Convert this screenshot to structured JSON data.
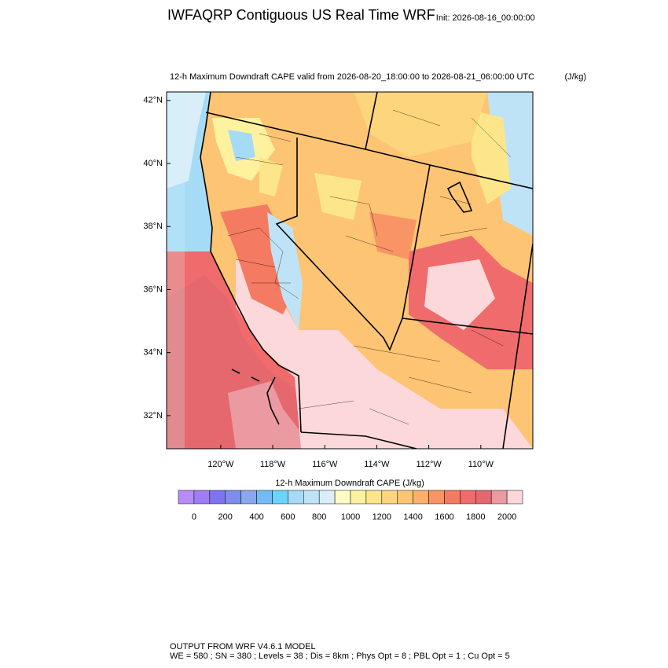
{
  "title": "IWFAQRP Contiguous US Real Time WRF",
  "init": "Init: 2026-08-16_00:00:00",
  "subtitle": "12-h Maximum Downdraft CAPE valid from 2026-08-20_18:00:00 to 2026-08-21_06:00:00 UTC",
  "units": "(J/kg)",
  "map": {
    "xlim": [
      -122.08,
      -108.0
    ],
    "ylim": [
      30.95,
      42.27
    ],
    "xticks": [
      {
        "value": -120,
        "label": "120°W"
      },
      {
        "value": -118,
        "label": "118°W"
      },
      {
        "value": -116,
        "label": "116°W"
      },
      {
        "value": -114,
        "label": "114°W"
      },
      {
        "value": -112,
        "label": "112°W"
      },
      {
        "value": -110,
        "label": "110°W"
      }
    ],
    "yticks": [
      {
        "value": 32,
        "label": "32°N"
      },
      {
        "value": 34,
        "label": "34°N"
      },
      {
        "value": 36,
        "label": "36°N"
      },
      {
        "value": 38,
        "label": "38°N"
      },
      {
        "value": 40,
        "label": "40°N"
      },
      {
        "value": 42,
        "label": "42°N"
      }
    ]
  },
  "colorbar": {
    "title": "12-h Maximum Downdraft CAPE  (J/kg)",
    "lim": [
      -100,
      2100
    ],
    "levels": [
      0,
      100,
      200,
      300,
      400,
      500,
      600,
      700,
      800,
      900,
      1000,
      1100,
      1200,
      1300,
      1400,
      1500,
      1600,
      1700,
      1800,
      1900,
      2000
    ],
    "ticks": [
      0,
      200,
      400,
      600,
      800,
      1000,
      1200,
      1400,
      1600,
      1800,
      2000
    ],
    "colors": [
      "#b88cf8",
      "#9f7df5",
      "#7f74ee",
      "#7d8de9",
      "#8aa8ee",
      "#74bbf3",
      "#6ad4fb",
      "#a6dbf6",
      "#bfe3f6",
      "#d9eef9",
      "#fffbc3",
      "#fff29e",
      "#fde689",
      "#fdd57c",
      "#fdc474",
      "#fdb06b",
      "#f99565",
      "#f57a62",
      "#f06b6b",
      "#e5686e",
      "#ea9aa0",
      "#fcd8da"
    ]
  },
  "footer": [
    "OUTPUT FROM WRF V4.6.1 MODEL",
    "WE = 580 ; SN = 380 ; Levels = 38 ; Dis = 8km ; Phys Opt = 8 ; PBL Opt = 1 ; Cu Opt = 5"
  ]
}
